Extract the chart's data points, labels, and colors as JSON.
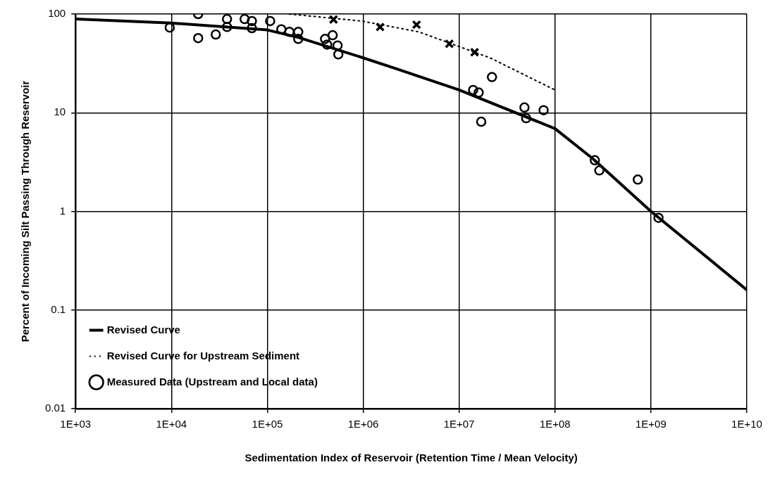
{
  "chart_data": {
    "type": "line",
    "xlabel": "Sedimentation Index of Reservoir (Retention Time / Mean Velocity)",
    "ylabel": "Percent of Incoming Silt Passing Through Reservoir",
    "log": "xy",
    "grid": true,
    "legend": "bottom left",
    "xlim": [
      1000,
      10000000000
    ],
    "xticks": [
      {
        "value": 1000,
        "label": "1E+03"
      },
      {
        "value": 10000,
        "label": "1E+04"
      },
      {
        "value": 100000,
        "label": "1E+05"
      },
      {
        "value": 1000000,
        "label": "1E+06"
      },
      {
        "value": 10000000,
        "label": "1E+07"
      },
      {
        "value": 100000000,
        "label": "1E+08"
      },
      {
        "value": 1000000000,
        "label": "1E+09"
      },
      {
        "value": 10000000000,
        "label": "1E+10"
      }
    ],
    "ylim": [
      0.01,
      100
    ],
    "yticks": [
      0.01,
      0.1,
      1,
      10,
      100
    ],
    "series": [
      {
        "name": "Revised Curve",
        "color": "#000000",
        "line_style": "solid",
        "marker": "none",
        "x": [
          1000,
          10000,
          100000,
          210000,
          1000000,
          2200000,
          10000000,
          100000000,
          250000000,
          1000000000,
          10000000000
        ],
        "values": [
          89,
          81,
          69,
          58,
          36,
          28,
          17,
          6.9,
          3.4,
          1,
          0.16
        ]
      },
      {
        "name": "Revised Curve for Upstream Sediment",
        "color": "#000000",
        "line_style": "dotted",
        "marker": "none",
        "x": [
          170000,
          960000,
          3800000,
          21000000,
          100000000
        ],
        "values": [
          100,
          85,
          66,
          36,
          17
        ]
      },
      {
        "type": "scatter",
        "color": "#000000",
        "marker": "cross",
        "x": [
          490000,
          1500000,
          3600000,
          7900000,
          14500000
        ],
        "values": [
          88,
          74,
          78,
          50,
          41
        ]
      },
      {
        "name": "Measured Data (Upstream and Local data)",
        "type": "scatter",
        "color": "#000000",
        "marker": "circle",
        "x": [
          19000,
          9600,
          19000,
          29000,
          38000,
          38000,
          58000,
          69000,
          69000,
          107000,
          140000,
          170000,
          210000,
          210000,
          400000,
          480000,
          420000,
          540000,
          550000,
          22000000,
          14000000,
          16000000,
          17000000,
          48000000,
          50000000,
          76000000,
          260000000,
          290000000,
          730000000,
          1200000000
        ],
        "values": [
          100,
          73,
          57,
          62,
          89,
          74,
          89,
          85,
          72,
          85,
          70,
          66,
          66,
          56,
          56,
          61,
          49,
          48,
          39,
          23,
          17,
          16,
          8.1,
          11.3,
          8.8,
          10.6,
          3.3,
          2.6,
          2.1,
          0.86
        ]
      }
    ]
  }
}
